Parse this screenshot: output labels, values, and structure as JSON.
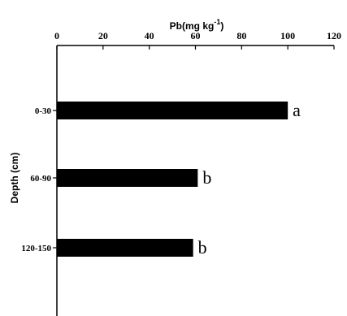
{
  "chart_data": {
    "type": "bar",
    "orientation": "horizontal",
    "title": "Pb(mg kg",
    "title_superscript": "-1",
    "title_suffix": ")",
    "ylabel": "Depth (cm)",
    "xlabel": "",
    "categories": [
      "0-30",
      "60-90",
      "120-150"
    ],
    "values": [
      100,
      61,
      59
    ],
    "significance_letters": [
      "a",
      "b",
      "b"
    ],
    "xlim": [
      0,
      120
    ],
    "xticks": [
      "0",
      "20",
      "40",
      "60",
      "80",
      "100",
      "120"
    ],
    "x_axis_position": "top",
    "grid": false,
    "bar_color": "#000000"
  }
}
